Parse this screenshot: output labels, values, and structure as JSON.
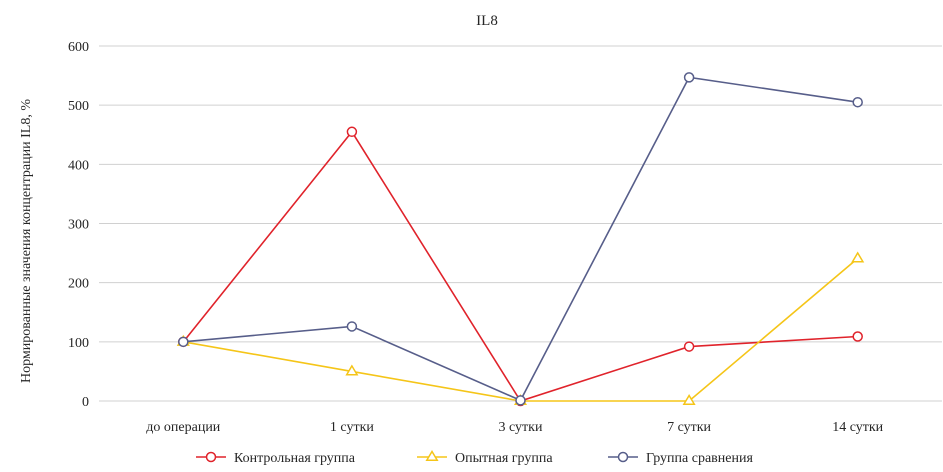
{
  "chart_data": {
    "type": "line",
    "title": "IL8",
    "xlabel": "",
    "ylabel": "Нормированные значения концентрации IL8, %",
    "categories": [
      "до операции",
      "1 сутки",
      "3 сутки",
      "7 сутки",
      "14 сутки"
    ],
    "ylim": [
      0,
      600
    ],
    "yticks": [
      0,
      100,
      200,
      300,
      400,
      500,
      600
    ],
    "grid": true,
    "legend_position": "bottom",
    "series": [
      {
        "name": "Контрольная группа",
        "values": [
          100,
          455,
          0,
          92,
          109
        ],
        "color": "#e0232b",
        "marker": "circle"
      },
      {
        "name": "Опытная группа",
        "values": [
          100,
          50,
          0,
          0,
          241
        ],
        "color": "#f5c518",
        "marker": "triangle"
      },
      {
        "name": "Группа сравнения",
        "values": [
          100,
          126,
          1,
          547,
          505
        ],
        "color": "#575e8a",
        "marker": "circle"
      }
    ]
  }
}
